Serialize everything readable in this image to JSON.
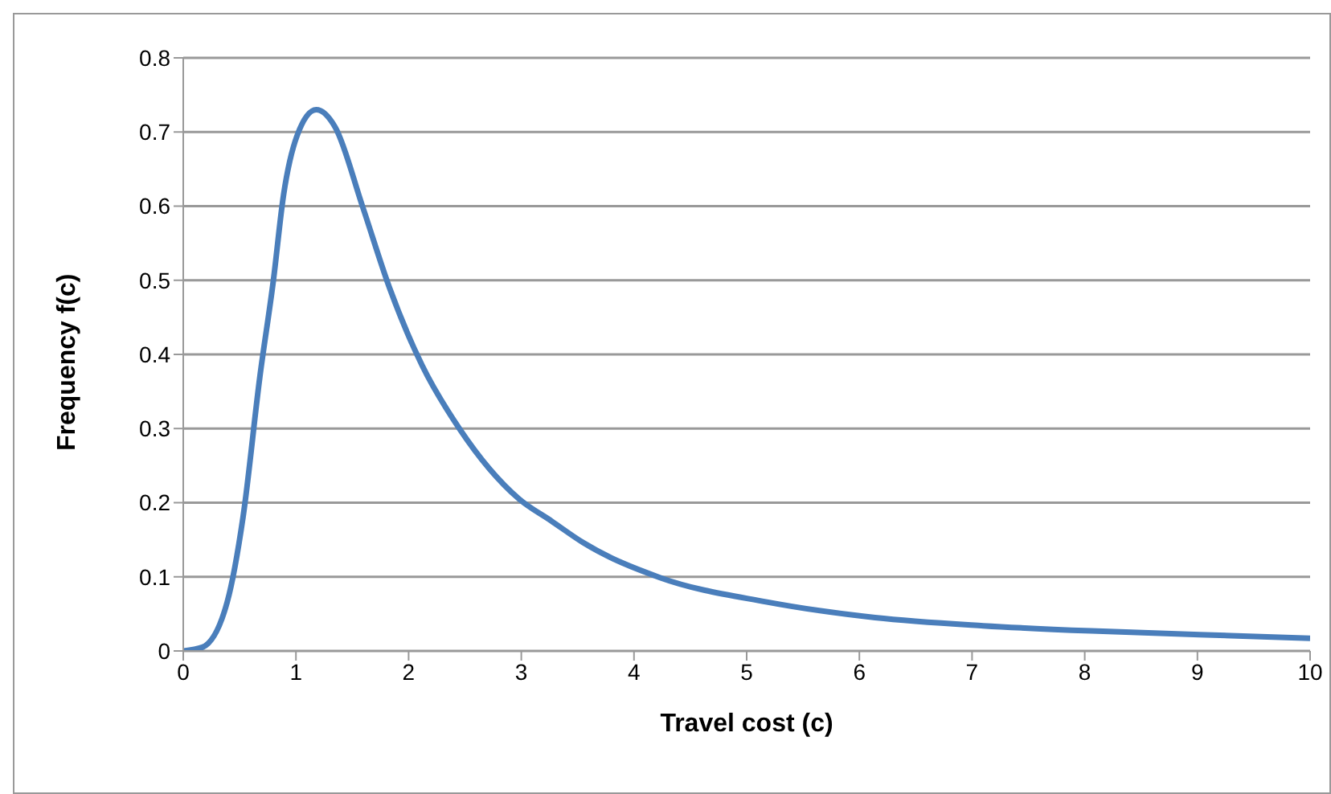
{
  "chart_data": {
    "type": "line",
    "xlabel": "Travel cost (c)",
    "ylabel": "Frequency f(c)",
    "x": [
      0,
      0.17,
      0.39,
      0.53,
      0.68,
      0.8,
      0.89,
      1.01,
      1.18,
      1.35,
      1.59,
      1.83,
      2.12,
      2.45,
      2.98,
      3.27,
      3.55,
      4.23,
      5.18,
      6.14,
      7.1,
      8.06,
      9.02,
      10
    ],
    "series": [
      {
        "color": "#4a7ebb",
        "values": [
          0,
          0.005,
          0.066,
          0.18,
          0.37,
          0.5,
          0.615,
          0.695,
          0.73,
          0.706,
          0.6,
          0.49,
          0.385,
          0.3,
          0.205,
          0.175,
          0.146,
          0.099,
          0.066,
          0.045,
          0.034,
          0.027,
          0.022,
          0.017
        ]
      }
    ],
    "xlim": [
      0,
      10
    ],
    "xticks": [
      0,
      1,
      2,
      3,
      4,
      5,
      6,
      7,
      8,
      9,
      10
    ],
    "ylim": [
      0,
      0.8
    ],
    "yticks": [
      0,
      0.1,
      0.2,
      0.3,
      0.4,
      0.5,
      0.6,
      0.7,
      0.8
    ],
    "grid": "y",
    "marker": "none",
    "line_style": "solid"
  }
}
